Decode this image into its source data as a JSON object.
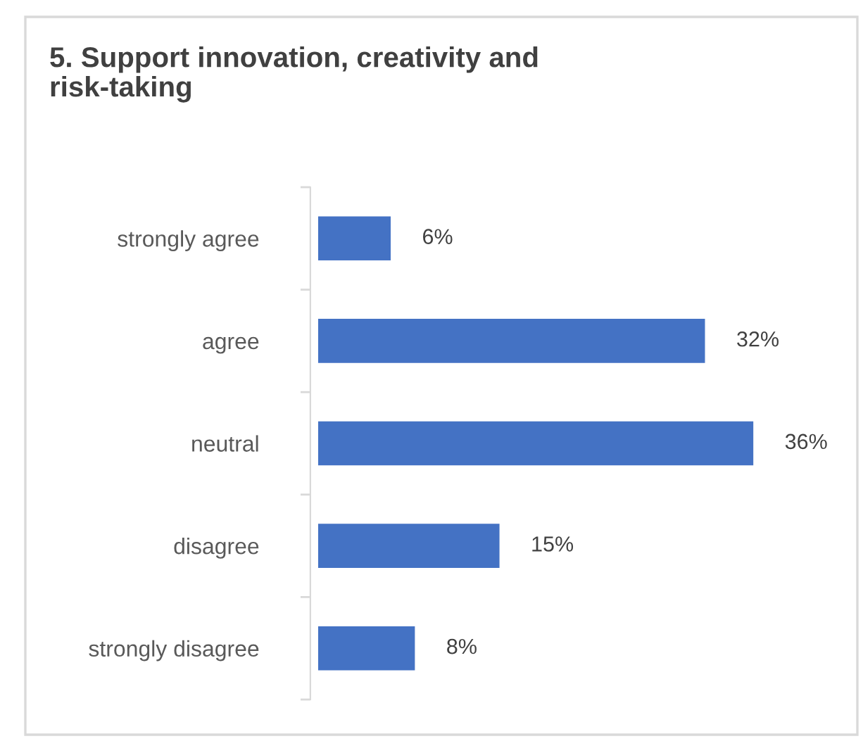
{
  "chart_data": {
    "type": "bar",
    "orientation": "horizontal",
    "title": "5. Support innovation, creativity and\nrisk-taking",
    "categories": [
      "strongly agree",
      "agree",
      "neutral",
      "disagree",
      "strongly disagree"
    ],
    "values": [
      6,
      32,
      36,
      15,
      8
    ],
    "value_labels": [
      "6%",
      "32%",
      "36%",
      "15%",
      "8%"
    ],
    "color": "#4472c4",
    "grid": false,
    "legend": false
  }
}
